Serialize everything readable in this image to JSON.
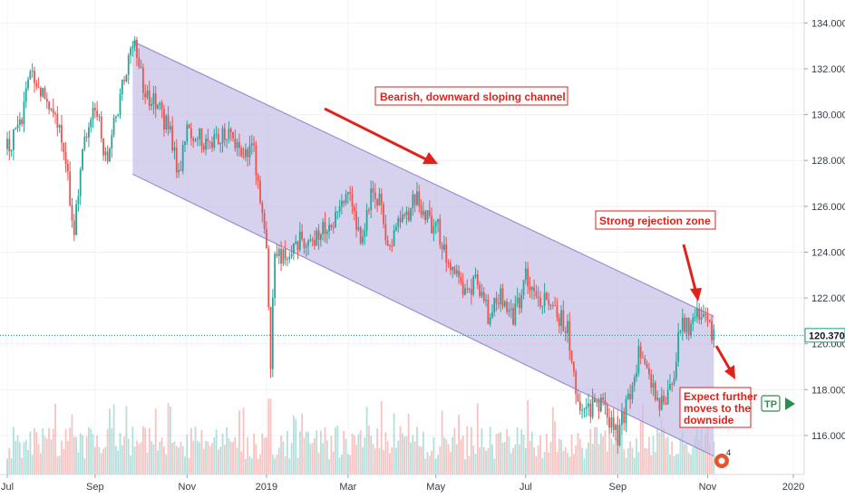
{
  "chart_data": {
    "type": "line",
    "candles": "ohlc",
    "xticks": [
      {
        "label": "Jul",
        "i": 0
      },
      {
        "label": "Sep",
        "i": 42
      },
      {
        "label": "Nov",
        "i": 86
      },
      {
        "label": "2019",
        "i": 124
      },
      {
        "label": "Mar",
        "i": 163
      },
      {
        "label": "May",
        "i": 205
      },
      {
        "label": "Jul",
        "i": 248
      },
      {
        "label": "Sep",
        "i": 292
      },
      {
        "label": "Nov",
        "i": 335
      },
      {
        "label": "2020",
        "i": 376
      }
    ],
    "ylim": [
      114.3,
      135.0
    ],
    "yticks": [
      116.0,
      118.0,
      120.0,
      122.0,
      124.0,
      126.0,
      128.0,
      130.0,
      132.0,
      134.0
    ],
    "ytick_labels": [
      "116.000",
      "118.000",
      "120.000",
      "122.000",
      "124.000",
      "126.000",
      "128.000",
      "130.000",
      "132.000",
      "134.000"
    ],
    "last_price": 120.37,
    "last_price_label": "120.370",
    "channel": {
      "start_i": 60,
      "end_i": 338,
      "upper": [
        133.2,
        121.2
      ],
      "lower": [
        127.4,
        115.1
      ]
    },
    "price_path": [
      [
        0,
        128.5
      ],
      [
        6,
        129.6
      ],
      [
        12,
        131.9
      ],
      [
        18,
        130.5
      ],
      [
        24,
        129.5
      ],
      [
        28,
        128.0
      ],
      [
        32,
        125.0
      ],
      [
        36,
        128.5
      ],
      [
        42,
        130.5
      ],
      [
        47,
        128.0
      ],
      [
        52,
        130.0
      ],
      [
        56,
        131.5
      ],
      [
        60,
        133.2
      ],
      [
        66,
        131.0
      ],
      [
        72,
        130.3
      ],
      [
        78,
        129.2
      ],
      [
        82,
        127.2
      ],
      [
        86,
        129.6
      ],
      [
        90,
        129.0
      ],
      [
        98,
        128.8
      ],
      [
        106,
        129.4
      ],
      [
        112,
        128.5
      ],
      [
        118,
        128.5
      ],
      [
        124,
        124.0
      ],
      [
        126,
        119.0
      ],
      [
        128,
        124.2
      ],
      [
        132,
        123.8
      ],
      [
        138,
        124.5
      ],
      [
        146,
        124.6
      ],
      [
        152,
        125.0
      ],
      [
        158,
        125.5
      ],
      [
        163,
        126.8
      ],
      [
        166,
        125.5
      ],
      [
        170,
        124.5
      ],
      [
        174,
        126.5
      ],
      [
        178,
        126.3
      ],
      [
        182,
        124.2
      ],
      [
        188,
        125.6
      ],
      [
        192,
        125.8
      ],
      [
        196,
        126.6
      ],
      [
        200,
        125.5
      ],
      [
        206,
        125.0
      ],
      [
        212,
        123.0
      ],
      [
        218,
        122.5
      ],
      [
        224,
        122.6
      ],
      [
        230,
        121.3
      ],
      [
        236,
        122.3
      ],
      [
        242,
        121.0
      ],
      [
        248,
        123.0
      ],
      [
        252,
        122.3
      ],
      [
        258,
        121.8
      ],
      [
        264,
        121.2
      ],
      [
        268,
        120.6
      ],
      [
        272,
        117.7
      ],
      [
        278,
        117.2
      ],
      [
        284,
        117.5
      ],
      [
        292,
        116.0
      ],
      [
        298,
        117.8
      ],
      [
        302,
        119.6
      ],
      [
        306,
        118.7
      ],
      [
        312,
        117.2
      ],
      [
        318,
        118.1
      ],
      [
        322,
        121.0
      ],
      [
        326,
        120.6
      ],
      [
        330,
        121.1
      ],
      [
        334,
        120.9
      ],
      [
        338,
        120.37
      ]
    ],
    "volume_max_rel": 0.29
  },
  "annotations": {
    "bearish_label": "Bearish, downward sloping channel",
    "rejection_label": "Strong rejection zone",
    "expect_line1": "Expect further",
    "expect_line2": "moves to the",
    "expect_line3": "downside",
    "tp_label": "TP",
    "badge_count": "4"
  },
  "colors": {
    "channel_fill": "#c8c2e6",
    "channel_line": "#9a8fd4",
    "bull": "#26a69a",
    "bear": "#ef5350",
    "price_line": "#0f9d8a",
    "annotation": "#e0221c",
    "tp": "#2e8b57"
  }
}
